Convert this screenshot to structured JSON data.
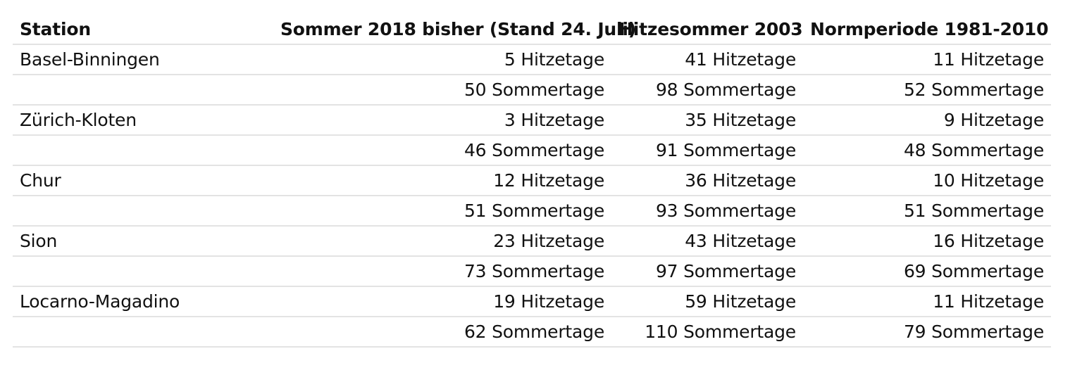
{
  "chart_data": {
    "type": "table",
    "columns": [
      "Station",
      "Sommer 2018 bisher (Stand 24. Juli)",
      "Hitzesommer 2003",
      "Normperiode 1981-2010"
    ],
    "rows": [
      [
        "Basel-Binningen",
        "5 Hitzetage",
        "41 Hitzetage",
        "11 Hitzetage"
      ],
      [
        "",
        "50 Sommertage",
        "98 Sommertage",
        "52 Sommertage"
      ],
      [
        "Zürich-Kloten",
        "3 Hitzetage",
        "35 Hitzetage",
        "9 Hitzetage"
      ],
      [
        "",
        "46 Sommertage",
        "91 Sommertage",
        "48 Sommertage"
      ],
      [
        "Chur",
        "12 Hitzetage",
        "36 Hitzetage",
        "10 Hitzetage"
      ],
      [
        "",
        "51 Sommertage",
        "93 Sommertage",
        "51 Sommertage"
      ],
      [
        "Sion",
        "23 Hitzetage",
        "43 Hitzetage",
        "16 Hitzetage"
      ],
      [
        "",
        "73 Sommertage",
        "97 Sommertage",
        "69 Sommertage"
      ],
      [
        "Locarno-Magadino",
        "19 Hitzetage",
        "59 Hitzetage",
        "11 Hitzetage"
      ],
      [
        "",
        "62 Sommertage",
        "110 Sommertage",
        "79 Sommertage"
      ]
    ]
  }
}
